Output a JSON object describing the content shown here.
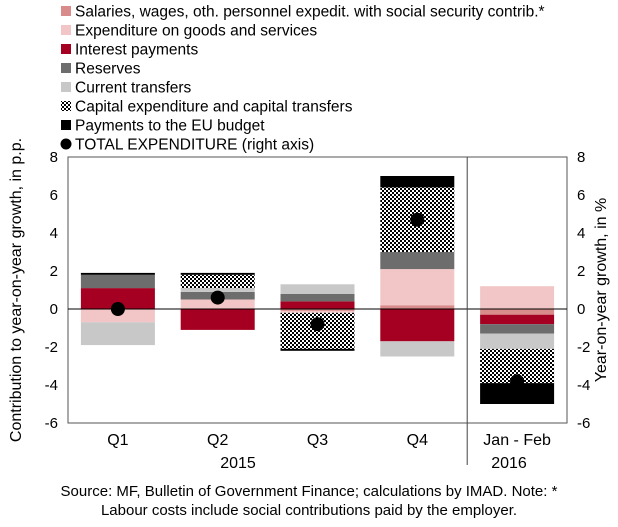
{
  "chart_data": {
    "type": "bar",
    "stacked": true,
    "categories": [
      "Q1",
      "Q2",
      "Q3",
      "Q4",
      "Jan - Feb"
    ],
    "groups": [
      {
        "label": "2015",
        "categories": [
          "Q1",
          "Q2",
          "Q3",
          "Q4"
        ]
      },
      {
        "label": "2016",
        "categories": [
          "Jan - Feb"
        ]
      }
    ],
    "ylabel_left": "Contribution to year-on-year growth, in p.p.",
    "ylabel_right": "Year-on-year growth, in %",
    "ylim": [
      -6,
      8
    ],
    "yticks": [
      -6,
      -4,
      -2,
      0,
      2,
      4,
      6,
      8
    ],
    "legend_position": "top-left",
    "series": [
      {
        "name": "Salaries, wages, oth. personnel expedit. with social security contrib.*",
        "color": "#d98a8a",
        "pattern": "solid",
        "values": [
          0.0,
          0.0,
          -0.1,
          0.2,
          -0.3
        ]
      },
      {
        "name": "Expenditure on goods and services",
        "color": "#f2c6c6",
        "pattern": "solid",
        "values": [
          -0.7,
          0.5,
          -0.1,
          1.9,
          1.2
        ]
      },
      {
        "name": "Interest payments",
        "color": "#a50021",
        "pattern": "solid",
        "values": [
          1.1,
          -1.1,
          0.4,
          -1.7,
          -0.5
        ]
      },
      {
        "name": "Reserves",
        "color": "#6d6d6d",
        "pattern": "solid",
        "values": [
          0.7,
          0.4,
          0.4,
          0.9,
          -0.5
        ]
      },
      {
        "name": "Current transfers",
        "color": "#c8c8c8",
        "pattern": "solid",
        "values": [
          -1.2,
          0.2,
          0.5,
          -0.8,
          -0.8
        ]
      },
      {
        "name": "Capital expenditure and capital transfers",
        "color": "#000000",
        "pattern": "checker",
        "values": [
          0.0,
          0.7,
          -1.9,
          3.4,
          -1.8
        ]
      },
      {
        "name": "Payments to the EU budget",
        "color": "#000000",
        "pattern": "solid",
        "values": [
          0.1,
          0.1,
          -0.1,
          0.6,
          -1.1
        ]
      }
    ],
    "line_series": {
      "name": "TOTAL EXPENDITURE (right axis)",
      "axis": "right",
      "marker": "circle",
      "values": [
        0.0,
        0.6,
        -0.8,
        4.7,
        -3.8
      ]
    }
  },
  "labels": {
    "year_2015": "2015",
    "year_2016": "2016"
  },
  "note": {
    "line1": "Source: MF, Bulletin of Government Finance; calculations by IMAD. Note: *",
    "line2": "Labour costs include social contributions paid by the employer."
  }
}
